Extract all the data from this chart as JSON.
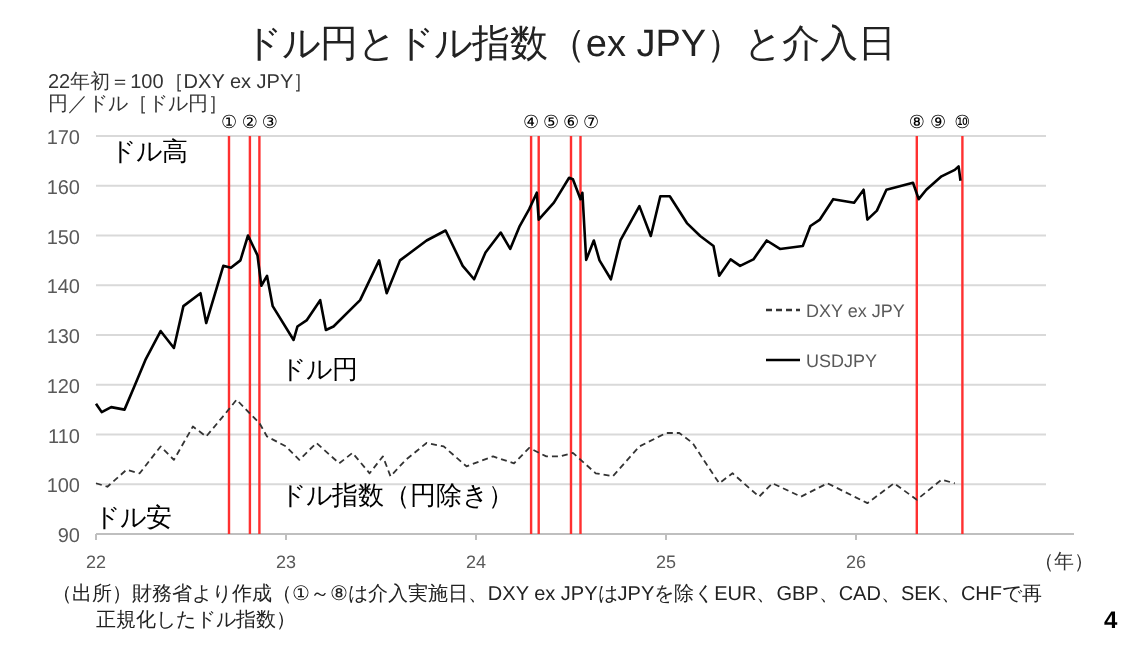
{
  "chart_data": {
    "type": "line",
    "title": "ドル円とドル指数（ex JPY）と介入日",
    "ylabel": "22年初＝100［DXY ex JPY］円／ドル［ドル円］",
    "xlabel": "（年）",
    "xlim": [
      22,
      27
    ],
    "xticks": [
      22,
      23,
      24,
      25,
      26
    ],
    "ylim": [
      90,
      170
    ],
    "yticks": [
      90,
      100,
      110,
      120,
      130,
      140,
      150,
      160,
      170
    ],
    "grid": "y",
    "legend": "right",
    "series": [
      {
        "name": "DXY ex JPY",
        "color": "#333333",
        "line_style": "dashed",
        "x": [
          22.0,
          22.06,
          22.16,
          22.23,
          22.34,
          22.41,
          22.51,
          22.58,
          22.67,
          22.74,
          22.79,
          22.86,
          22.9,
          23.0,
          23.07,
          23.16,
          23.28,
          23.35,
          23.44,
          23.51,
          23.55,
          23.63,
          23.74,
          23.83,
          23.95,
          24.09,
          24.2,
          24.28,
          24.37,
          24.44,
          24.51,
          24.63,
          24.72,
          24.86,
          25.0,
          25.07,
          25.14,
          25.21,
          25.28,
          25.35,
          25.49,
          25.56,
          25.71,
          25.85,
          26.06,
          26.2,
          26.32,
          26.45,
          26.52
        ],
        "values": [
          100.2,
          99.5,
          102.9,
          102.2,
          107.6,
          104.9,
          111.6,
          109.6,
          113.7,
          117,
          115,
          112.3,
          109.6,
          107.6,
          104.9,
          108.3,
          104.2,
          106.3,
          102.2,
          105.6,
          101.6,
          104.9,
          108.3,
          107.6,
          103.6,
          105.6,
          104.2,
          107.3,
          105.6,
          105.6,
          106.3,
          102.2,
          101.6,
          107.6,
          110.3,
          110.3,
          108.3,
          104.2,
          100.2,
          102.2,
          97.5,
          100.2,
          97.5,
          100.2,
          96.2,
          100.2,
          96.9,
          100.9,
          100.2
        ]
      },
      {
        "name": "USDJPY",
        "color": "#000000",
        "line_style": "solid",
        "x": [
          22.0,
          22.03,
          22.08,
          22.15,
          22.2,
          22.26,
          22.34,
          22.41,
          22.46,
          22.55,
          22.58,
          22.67,
          22.71,
          22.76,
          22.8,
          22.85,
          22.87,
          22.9,
          22.93,
          23.04,
          23.06,
          23.11,
          23.18,
          23.21,
          23.25,
          23.39,
          23.49,
          23.53,
          23.6,
          23.74,
          23.84,
          23.93,
          23.99,
          24.05,
          24.13,
          24.18,
          24.23,
          24.28,
          24.32,
          24.33,
          24.41,
          24.49,
          24.51,
          24.55,
          24.56,
          24.58,
          24.62,
          24.65,
          24.71,
          24.76,
          24.86,
          24.92,
          24.97,
          25.02,
          25.11,
          25.18,
          25.25,
          25.28,
          25.34,
          25.39,
          25.46,
          25.53,
          25.6,
          25.72,
          25.76,
          25.81,
          25.88,
          25.99,
          26.04,
          26.06,
          26.11,
          26.16,
          26.23,
          26.3,
          26.33,
          26.37,
          26.45,
          26.52,
          26.54,
          26.55
        ],
        "values": [
          116.2,
          114.5,
          115.5,
          115,
          119.5,
          125,
          130.8,
          127.4,
          135.8,
          138.4,
          132.4,
          143.9,
          143.5,
          145,
          150,
          146,
          139.9,
          141.9,
          135.8,
          129,
          131.7,
          133,
          137,
          131,
          131.7,
          137,
          145,
          138.4,
          145,
          149,
          151,
          143.9,
          141.2,
          146.6,
          150.6,
          147.3,
          151.9,
          155.3,
          158.6,
          153.2,
          156.6,
          161.6,
          161.3,
          157.3,
          158.6,
          145.1,
          149,
          145,
          141.2,
          149,
          155.9,
          149.9,
          157.9,
          157.9,
          152.5,
          149.9,
          147.9,
          141.9,
          145.2,
          143.9,
          145.2,
          149,
          147.3,
          147.9,
          151.9,
          153.2,
          157.3,
          156.6,
          159.2,
          153.2,
          155,
          159.2,
          159.9,
          160.6,
          157.3,
          159.2,
          161.9,
          163.2,
          163.9,
          161
        ]
      }
    ],
    "ref_lines": [
      {
        "axis": "x",
        "value": 22.7,
        "label": "①",
        "color": "#ff3030"
      },
      {
        "axis": "x",
        "value": 22.81,
        "label": "②",
        "color": "#ff3030"
      },
      {
        "axis": "x",
        "value": 22.86,
        "label": "③",
        "color": "#ff3030"
      },
      {
        "axis": "x",
        "value": 24.29,
        "label": "④",
        "color": "#ff3030"
      },
      {
        "axis": "x",
        "value": 24.33,
        "label": "⑤",
        "color": "#ff3030"
      },
      {
        "axis": "x",
        "value": 24.5,
        "label": "⑥",
        "color": "#ff3030"
      },
      {
        "axis": "x",
        "value": 24.55,
        "label": "⑦",
        "color": "#ff3030"
      },
      {
        "axis": "x",
        "value": 26.32,
        "label": "⑧",
        "color": "#ff3030"
      },
      {
        "axis": "x",
        "value": 26.56,
        "label": "⑩",
        "color": "#ff3030"
      }
    ],
    "annotations": [
      "⑨",
      "ドル高",
      "ドル円",
      "ドル指数（円除き）",
      "ドル安",
      "（出所）財務省より作成（①～⑧は介入実施日、DXY ex JPYはJPYを除くEUR、GBP、CAD、SEK、CHFで再正規化したドル指数）",
      "4"
    ]
  }
}
